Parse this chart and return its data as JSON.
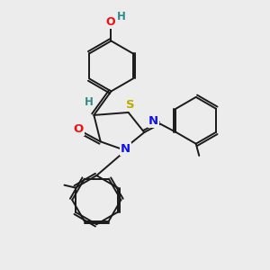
{
  "bg_color": "#ececec",
  "atom_colors": {
    "C": "#1a1a1a",
    "H": "#2e8b8b",
    "O": "#ee1111",
    "N": "#1111ee",
    "S": "#bbaa00"
  },
  "bond_color": "#1a1a1a",
  "bond_width": 1.4,
  "fig_width": 3.0,
  "fig_height": 3.0,
  "dpi": 100
}
